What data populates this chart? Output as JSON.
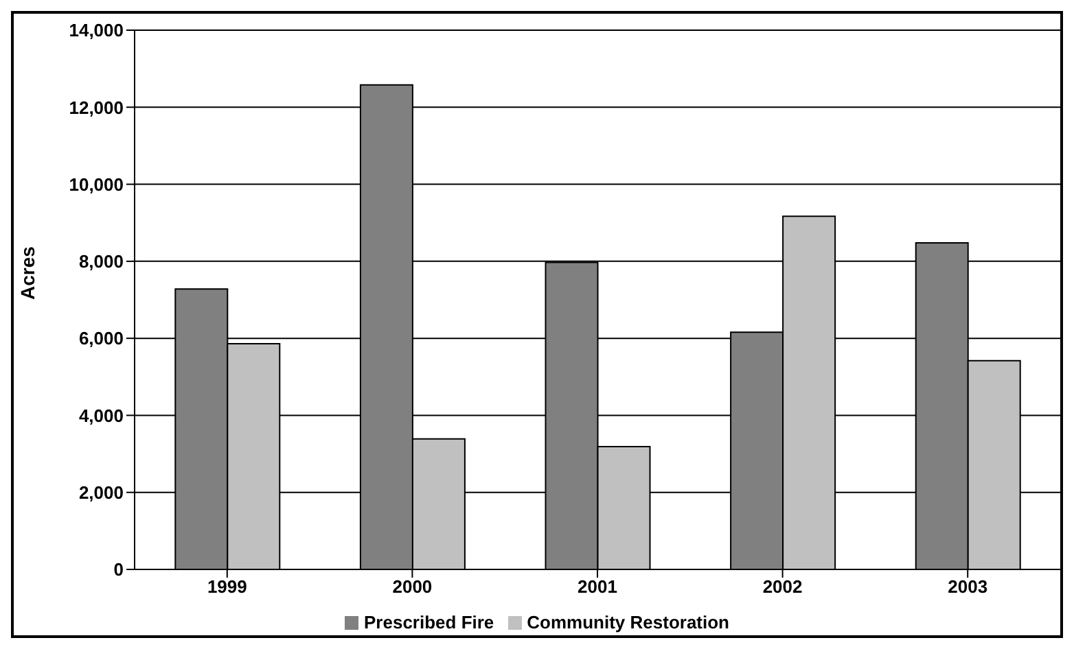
{
  "chart_data": {
    "type": "bar",
    "ylabel": "Acres",
    "categories": [
      "1999",
      "2000",
      "2001",
      "2002",
      "2003"
    ],
    "series": [
      {
        "name": "Prescribed Fire",
        "color": "#808080",
        "values": [
          7280,
          12580,
          7970,
          6160,
          8480
        ]
      },
      {
        "name": "Community Restoration",
        "color": "#c0c0c0",
        "values": [
          5860,
          3390,
          3190,
          9170,
          5420
        ]
      }
    ],
    "ylim": [
      0,
      14000
    ],
    "yticks": [
      0,
      {
        "value": 2000,
        "label": "2,000"
      },
      {
        "value": 4000,
        "label": "4,000"
      },
      {
        "value": 6000,
        "label": "6,000"
      },
      {
        "value": 8000,
        "label": "8,000"
      },
      {
        "value": 10000,
        "label": "10,000"
      },
      {
        "value": 12000,
        "label": "12,000"
      },
      {
        "value": 14000,
        "label": "14,000"
      }
    ],
    "grid": "y",
    "legend": "bottom"
  }
}
